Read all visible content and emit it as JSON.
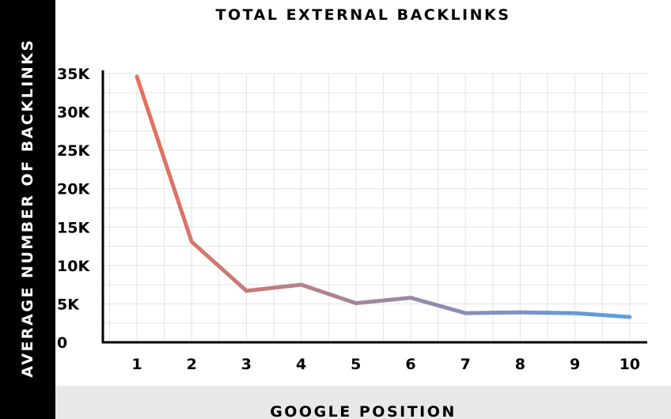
{
  "chart_data": {
    "type": "line",
    "title": "TOTAL EXTERNAL BACKLINKS",
    "xlabel": "GOOGLE POSITION",
    "ylabel": "AVERAGE NUMBER OF BACKLINKS",
    "x": [
      1,
      2,
      3,
      4,
      5,
      6,
      7,
      8,
      9,
      10
    ],
    "x_tick_labels": [
      "1",
      "2",
      "3",
      "4",
      "5",
      "6",
      "7",
      "8",
      "9",
      "10"
    ],
    "series": [
      {
        "values": [
          34600,
          13100,
          6700,
          7500,
          5100,
          5800,
          3800,
          3900,
          3800,
          3300
        ]
      }
    ],
    "ylim": [
      0,
      35000
    ],
    "y_ticks": [
      0,
      5000,
      10000,
      15000,
      20000,
      25000,
      30000,
      35000
    ],
    "y_tick_labels": [
      "0",
      "5K",
      "10K",
      "15K",
      "20K",
      "25K",
      "30K",
      "35K"
    ],
    "grid": true,
    "colors": {
      "line_start": "#e8705a",
      "line_end": "#5b9ee0",
      "grid": "#e3e3e3",
      "axis": "#000000",
      "ylabel_band": "#000000",
      "xlabel_band": "#e8e8e8"
    }
  }
}
